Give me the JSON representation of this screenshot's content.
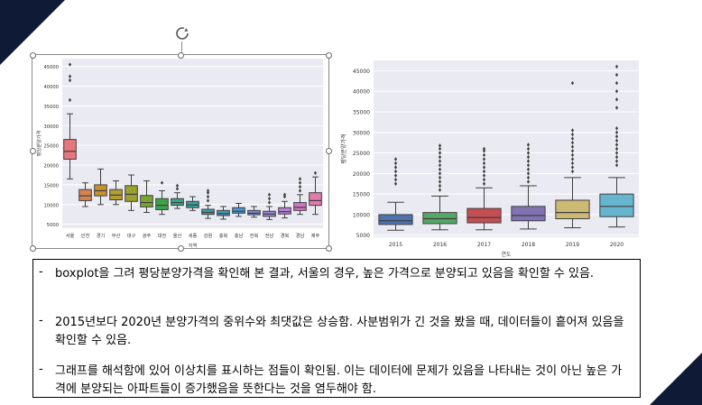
{
  "slide": {
    "accent": "#0f1a36",
    "notes": [
      {
        "marker": "-",
        "text": "boxplot을 그려 평당분양가격을 확인해 본 결과, 서울의 경우, 높은 가격으로 분양되고 있음을 확인할 수 있음."
      },
      {
        "marker": "-",
        "text": "2015년보다 2020년 분양가격의 중위수와 최댓값은 상승함. 사분범위가 긴 것을 봤을 때, 데이터들이 흩어져 있음을 확인할 수 있음."
      },
      {
        "marker": "-",
        "text": "그래프를 해석함에 있어 이상치를 표시하는 점들이 확인됨. 이는 데이터에 문제가 있음을 나타내는 것이 아닌 높은 가격에 분양되는 아파트들이 증가했음을 뜻한다는 것을 염두해야 함."
      }
    ]
  },
  "chart_data": [
    {
      "type": "boxplot",
      "xlabel": "지역",
      "ylabel": "평당분양가격",
      "ylim": [
        4000,
        47000
      ],
      "yticks": [
        5000,
        10000,
        15000,
        20000,
        25000,
        30000,
        35000,
        40000,
        45000
      ],
      "background": "#eaeaf2",
      "grid": true,
      "categories": [
        "서울",
        "인천",
        "경기",
        "부산",
        "대구",
        "광주",
        "대전",
        "울산",
        "세종",
        "강원",
        "충북",
        "충남",
        "전북",
        "전남",
        "경북",
        "경남",
        "제주"
      ],
      "boxes": [
        {
          "q1": 21500,
          "median": 23500,
          "q3": 26500,
          "lo": 16500,
          "hi": 33000,
          "outliers": [
            36500,
            41500,
            42500,
            45500
          ],
          "color": "#e8767e"
        },
        {
          "q1": 11000,
          "median": 12200,
          "q3": 13800,
          "lo": 9500,
          "hi": 15500,
          "outliers": [],
          "color": "#d5844f"
        },
        {
          "q1": 12200,
          "median": 13500,
          "q3": 15000,
          "lo": 10000,
          "hi": 19000,
          "outliers": [],
          "color": "#c9902e"
        },
        {
          "q1": 11200,
          "median": 12400,
          "q3": 13800,
          "lo": 10000,
          "hi": 16000,
          "outliers": [],
          "color": "#b59f2e"
        },
        {
          "q1": 10800,
          "median": 12600,
          "q3": 14800,
          "lo": 8500,
          "hi": 17500,
          "outliers": [],
          "color": "#9ba12f"
        },
        {
          "q1": 9400,
          "median": 10500,
          "q3": 12300,
          "lo": 8000,
          "hi": 16000,
          "outliers": [],
          "color": "#78a532"
        },
        {
          "q1": 8700,
          "median": 9800,
          "q3": 11500,
          "lo": 7500,
          "hi": 13500,
          "outliers": [
            15500
          ],
          "color": "#3aa548"
        },
        {
          "q1": 9800,
          "median": 10500,
          "q3": 11500,
          "lo": 9000,
          "hi": 13000,
          "outliers": [
            14000,
            14800
          ],
          "color": "#3aa48a"
        },
        {
          "q1": 9200,
          "median": 9900,
          "q3": 10800,
          "lo": 8500,
          "hi": 12000,
          "outliers": [],
          "color": "#37a29b"
        },
        {
          "q1": 7500,
          "median": 8000,
          "q3": 8800,
          "lo": 6500,
          "hi": 9800,
          "outliers": [
            11000,
            12000,
            13000,
            13500
          ],
          "color": "#39a0ac"
        },
        {
          "q1": 7200,
          "median": 7700,
          "q3": 8500,
          "lo": 6300,
          "hi": 9500,
          "outliers": [],
          "color": "#3d9dbf"
        },
        {
          "q1": 7800,
          "median": 8300,
          "q3": 9200,
          "lo": 7000,
          "hi": 10300,
          "outliers": [],
          "color": "#4d97d3"
        },
        {
          "q1": 7400,
          "median": 7800,
          "q3": 8500,
          "lo": 6800,
          "hi": 9500,
          "outliers": [],
          "color": "#778fdc"
        },
        {
          "q1": 7000,
          "median": 7600,
          "q3": 8300,
          "lo": 6200,
          "hi": 9500,
          "outliers": [
            10500,
            11500,
            12500
          ],
          "color": "#9b87de"
        },
        {
          "q1": 7600,
          "median": 8200,
          "q3": 9200,
          "lo": 6600,
          "hi": 10800,
          "outliers": [
            12000,
            12500
          ],
          "color": "#b77fd9"
        },
        {
          "q1": 8500,
          "median": 9300,
          "q3": 10500,
          "lo": 7500,
          "hi": 12500,
          "outliers": [
            13500,
            14500,
            15500,
            16500
          ],
          "color": "#d174c9"
        },
        {
          "q1": 9800,
          "median": 11000,
          "q3": 13000,
          "lo": 7500,
          "hi": 17000,
          "outliers": [
            18000
          ],
          "color": "#e37aaa"
        }
      ]
    },
    {
      "type": "boxplot",
      "xlabel": "연도",
      "ylabel": "평당분양가격",
      "ylim": [
        4500,
        47500
      ],
      "yticks": [
        5000,
        10000,
        15000,
        20000,
        25000,
        30000,
        35000,
        40000,
        45000
      ],
      "background": "#eaeaf2",
      "grid": true,
      "categories": [
        "2015",
        "2016",
        "2017",
        "2018",
        "2019",
        "2020"
      ],
      "boxes": [
        {
          "q1": 7600,
          "median": 8500,
          "q3": 10000,
          "lo": 6200,
          "hi": 13000,
          "outliers": [
            17500,
            18500,
            19500,
            20500,
            21500,
            22500,
            23500
          ],
          "color": "#4c72b0"
        },
        {
          "q1": 7800,
          "median": 9000,
          "q3": 10500,
          "lo": 6300,
          "hi": 14500,
          "outliers": [
            16000,
            17000,
            18000,
            19000,
            20000,
            21000,
            22000,
            23000,
            24000,
            25000,
            26000,
            26800
          ],
          "color": "#55a868"
        },
        {
          "q1": 8000,
          "median": 9300,
          "q3": 11500,
          "lo": 6300,
          "hi": 16500,
          "outliers": [
            17500,
            18500,
            19500,
            20500,
            21500,
            22500,
            23500,
            24500,
            25500,
            26000
          ],
          "color": "#c44e52"
        },
        {
          "q1": 8500,
          "median": 9800,
          "q3": 12000,
          "lo": 6500,
          "hi": 17000,
          "outliers": [
            18000,
            19000,
            20000,
            21000,
            22000,
            23000,
            24000,
            25000,
            26000,
            27000
          ],
          "color": "#8172b3"
        },
        {
          "q1": 9000,
          "median": 10500,
          "q3": 13500,
          "lo": 6800,
          "hi": 19000,
          "outliers": [
            20500,
            21500,
            22500,
            23500,
            24500,
            25500,
            26500,
            27500,
            28500,
            29500,
            30500,
            42000
          ],
          "color": "#ccb974"
        },
        {
          "q1": 9500,
          "median": 12000,
          "q3": 15000,
          "lo": 7000,
          "hi": 19000,
          "outliers": [
            22000,
            23000,
            24000,
            25000,
            26000,
            27000,
            28000,
            29000,
            30000,
            31000,
            36000,
            38000,
            40000,
            42000,
            44000,
            46000
          ],
          "color": "#64b5cd"
        }
      ]
    }
  ]
}
